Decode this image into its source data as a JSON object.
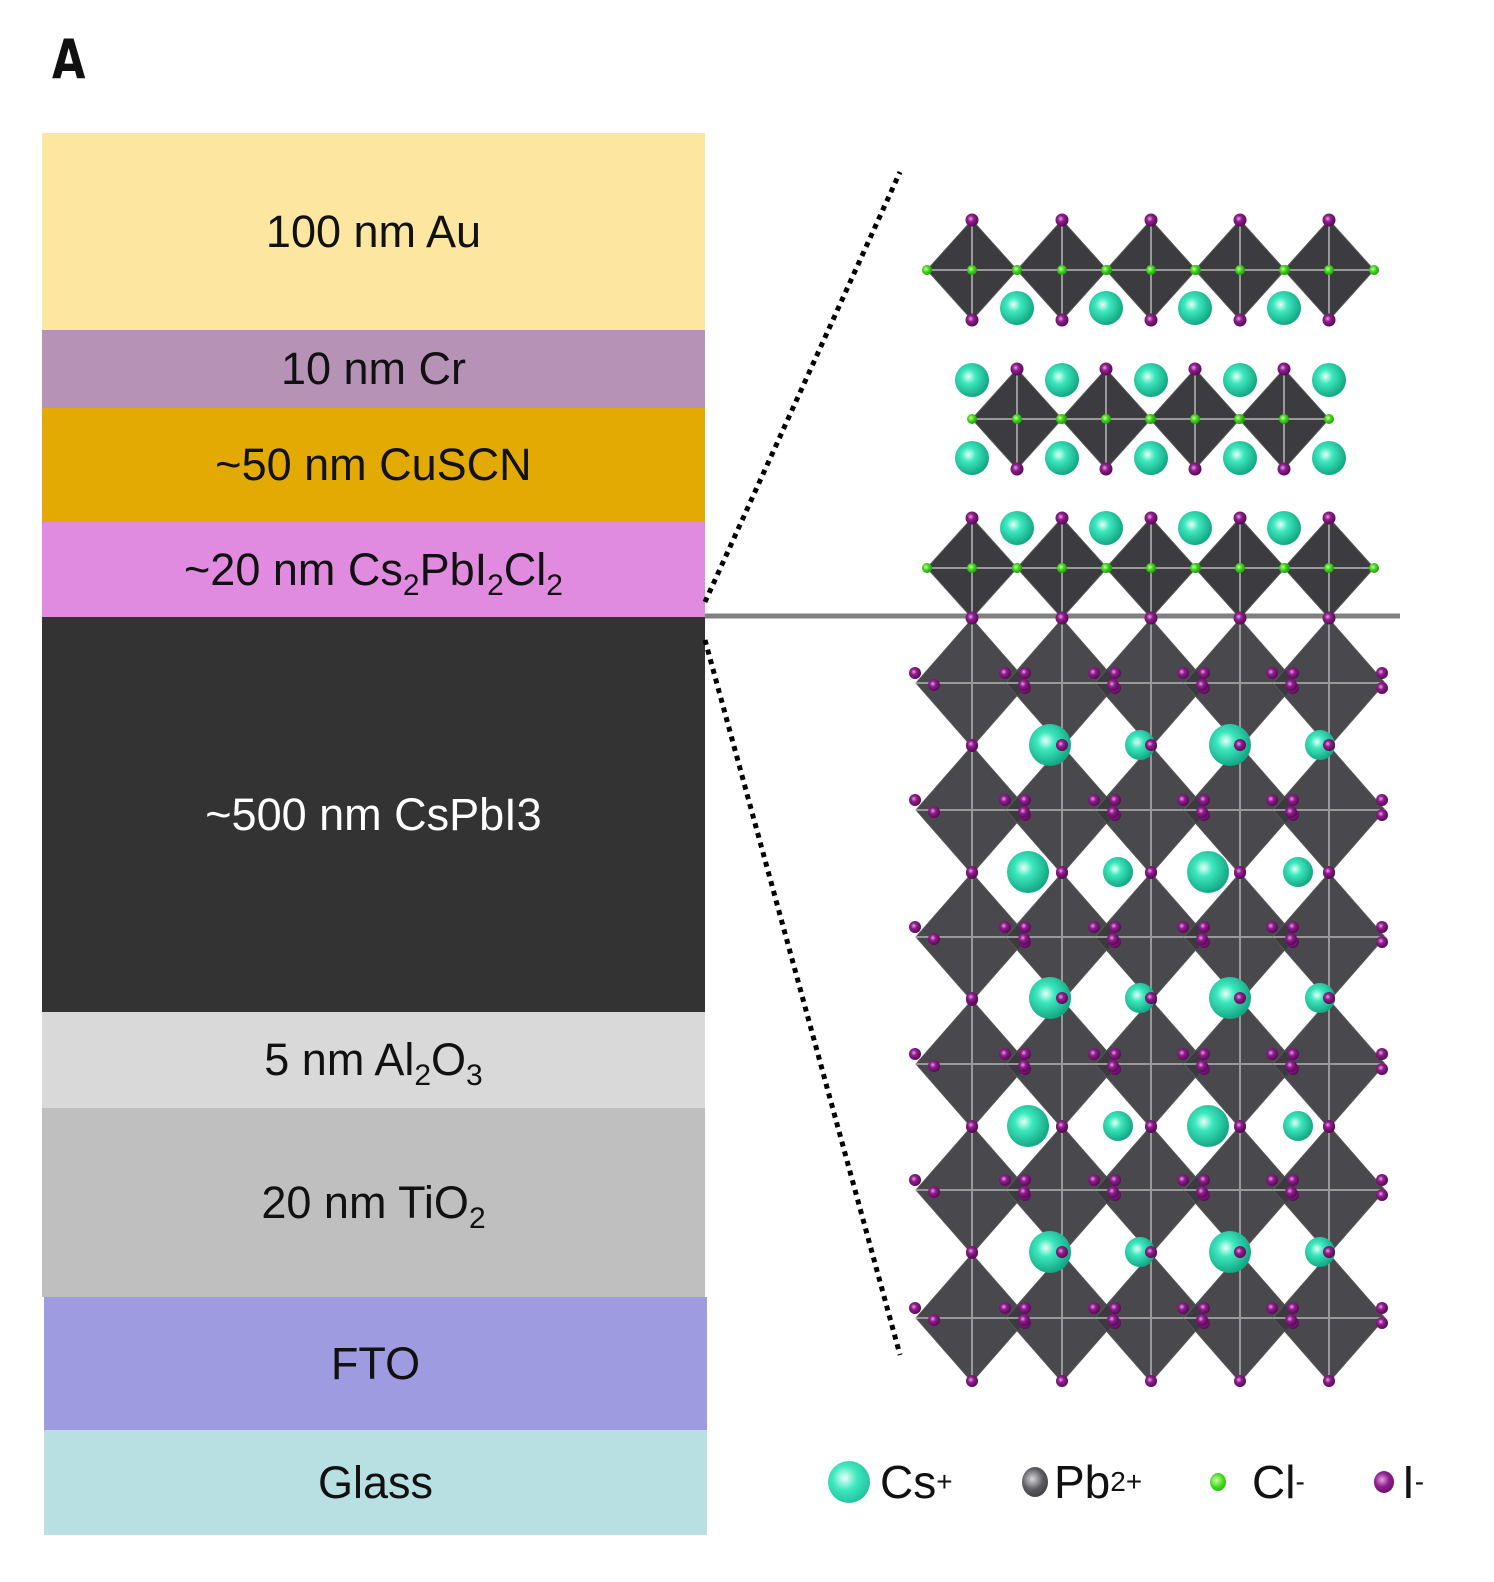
{
  "panel_label": "A",
  "layers": [
    {
      "parts": [
        "100 nm Au"
      ],
      "color": "#fde69f"
    },
    {
      "parts": [
        "10 nm Cr"
      ],
      "color": "#b792b7"
    },
    {
      "parts": [
        "~50 nm CuSCN"
      ],
      "color": "#e3aa04"
    },
    {
      "parts": [
        "~20 nm Cs",
        "2",
        "PbI",
        "2",
        "Cl",
        "2"
      ],
      "color": "#e08be0"
    },
    {
      "parts": [
        "~500 nm CsPbI3"
      ],
      "color": "#333333",
      "text_color": "#ffffff"
    },
    {
      "parts": [
        "5 nm Al",
        "2",
        "O",
        "3"
      ],
      "color": "#d9d9d9"
    },
    {
      "parts": [
        "20 nm TiO",
        "2"
      ],
      "color": "#bfbfbf"
    },
    {
      "parts": [
        "FTO"
      ],
      "color": "#9f9be0"
    },
    {
      "parts": [
        "Glass"
      ],
      "color": "#b8dfe2"
    }
  ],
  "legend": [
    {
      "symbol": "Cs",
      "charge": "+",
      "color": "#2ee0b0"
    },
    {
      "symbol": "Pb",
      "charge": "2+",
      "color": "#5a5a60"
    },
    {
      "symbol": "Cl",
      "charge": "-",
      "color": "#44dd22"
    },
    {
      "symbol": "I",
      "charge": "-",
      "color": "#8a1a88"
    }
  ]
}
